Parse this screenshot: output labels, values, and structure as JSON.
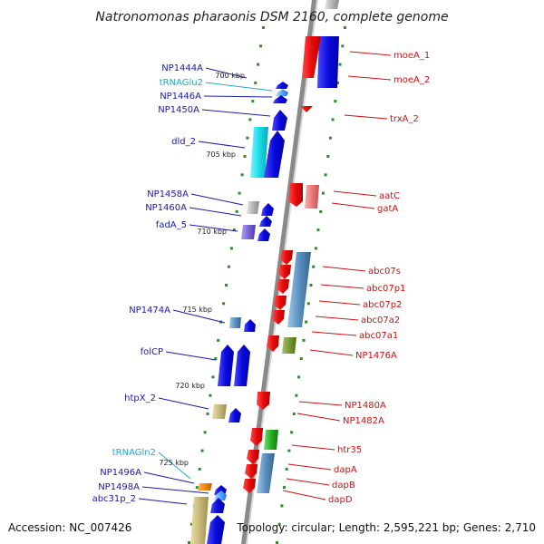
{
  "title": "Natronomonas pharaonis DSM 2160, complete genome",
  "footer": {
    "accession": "Accession: NC_007426",
    "topology": "Topology: circular; Length: 2,595,221 bp; Genes: 2,710"
  },
  "ticks": [
    "700 kbp",
    "705 kbp",
    "710 kbp",
    "715 kbp",
    "720 kbp",
    "725 kbp"
  ],
  "left_genes": [
    "NP1444A",
    "tRNAGlu2",
    "NP1446A",
    "NP1450A",
    "dld_2",
    "NP1458A",
    "NP1460A",
    "fadA_5",
    "NP1474A",
    "folCP",
    "htpX_2",
    "tRNAGln2",
    "NP1496A",
    "NP1498A",
    "abc31p_2"
  ],
  "right_genes": [
    "moeA_1",
    "moeA_2",
    "trxA_2",
    "aatC",
    "gatA",
    "abc07s",
    "abc07p1",
    "abc07p2",
    "abc07a2",
    "abc07a1",
    "NP1476A",
    "NP1480A",
    "NP1482A",
    "htr35",
    "dapA",
    "dapB",
    "dapD"
  ],
  "colors": {
    "forward_label": "#1a1aaa",
    "trna_label": "#22a8c8",
    "reverse_label": "#cc1111",
    "forward_gene": "#0a0adc",
    "reverse_gene": "#e80c0c",
    "backbone": "#8a8a8a",
    "tick_dots": "#2e8b2e"
  }
}
